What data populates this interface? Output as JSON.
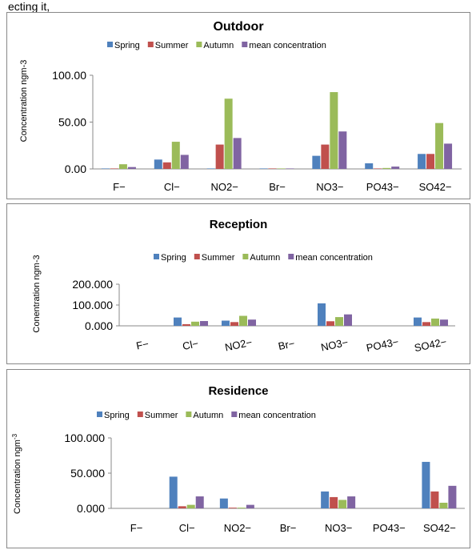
{
  "header_text": "ecting it,",
  "chart_data": [
    {
      "type": "bar",
      "title": "Outdoor",
      "ylabel": "Concentration ngm-3",
      "xlabel": "",
      "categories": [
        "F−",
        "Cl−",
        "NO2−",
        "Br−",
        "NO3−",
        "PO43−",
        "SO42−"
      ],
      "ylim": [
        0,
        100
      ],
      "yticks": [
        "0.00",
        "50.00",
        "100.00"
      ],
      "legend_position": "top",
      "tick_rotation": 0,
      "series": [
        {
          "name": "Spring",
          "color": "#4F81BD",
          "values": [
            0.5,
            10,
            0.5,
            0.5,
            14,
            6,
            16
          ]
        },
        {
          "name": "Summer",
          "color": "#C0504D",
          "values": [
            0.5,
            7,
            26,
            0.5,
            26,
            0.5,
            16
          ]
        },
        {
          "name": "Autumn",
          "color": "#9BBB59",
          "values": [
            5,
            29,
            75,
            0.5,
            82,
            1,
            49
          ]
        },
        {
          "name": "mean concentration",
          "color": "#8064A2",
          "values": [
            2,
            15,
            33,
            0.5,
            40,
            2.5,
            27
          ]
        }
      ]
    },
    {
      "type": "bar",
      "title": "Reception",
      "ylabel": "Conentration ngm-3",
      "xlabel": "",
      "categories": [
        "F−",
        "Cl−",
        "NO2−",
        "Br−",
        "NO3−",
        "PO43−",
        "SO42−"
      ],
      "ylim": [
        0,
        200
      ],
      "yticks": [
        "0.000",
        "100.000",
        "200.000"
      ],
      "legend_position": "top",
      "tick_rotation": -12,
      "series": [
        {
          "name": "Spring",
          "color": "#4F81BD",
          "values": [
            0,
            40,
            25,
            0,
            108,
            0,
            40
          ]
        },
        {
          "name": "Summer",
          "color": "#C0504D",
          "values": [
            0,
            8,
            18,
            0,
            22,
            0,
            18
          ]
        },
        {
          "name": "Autumn",
          "color": "#9BBB59",
          "values": [
            0,
            20,
            48,
            0,
            42,
            0,
            35
          ]
        },
        {
          "name": "mean concentration",
          "color": "#8064A2",
          "values": [
            0,
            23,
            30,
            0,
            55,
            0,
            30
          ]
        }
      ]
    },
    {
      "type": "bar",
      "title": "Residence",
      "ylabel": "Concentration ngm",
      "ylabel_sup": "-3",
      "xlabel": "",
      "categories": [
        "F−",
        "Cl−",
        "NO2−",
        "Br−",
        "NO3−",
        "PO43−",
        "SO42−"
      ],
      "ylim": [
        0,
        100
      ],
      "yticks": [
        "0.000",
        "50.000",
        "100.000"
      ],
      "legend_position": "top",
      "tick_rotation": 0,
      "series": [
        {
          "name": "Spring",
          "color": "#4F81BD",
          "values": [
            0,
            45,
            14,
            0,
            24,
            0,
            66
          ]
        },
        {
          "name": "Summer",
          "color": "#C0504D",
          "values": [
            0,
            3,
            1,
            0,
            16,
            0,
            24
          ]
        },
        {
          "name": "Autumn",
          "color": "#9BBB59",
          "values": [
            0,
            5,
            1,
            0,
            12,
            0,
            8
          ]
        },
        {
          "name": "mean concentration",
          "color": "#8064A2",
          "values": [
            0,
            17,
            5,
            0,
            17,
            0,
            32
          ]
        }
      ]
    }
  ]
}
